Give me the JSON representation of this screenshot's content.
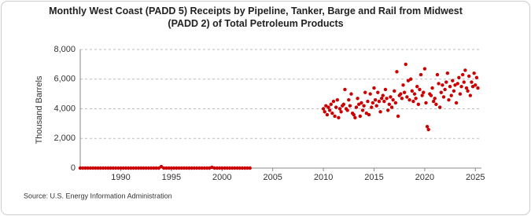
{
  "chart_data": {
    "type": "scatter",
    "title": "Monthly West Coast (PADD 5) Receipts by Pipeline, Tanker, Barge and Rail from Midwest (PADD 2) of Total Petroleum Products",
    "ylabel": "Thousand Barrels",
    "source": "Source: U.S. Energy Information Administration",
    "color": "#cc0000",
    "grid": true,
    "xlim": [
      1986,
      2025.6
    ],
    "xticks": [
      1990,
      1995,
      2000,
      2005,
      2010,
      2015,
      2020,
      2025
    ],
    "ylim": [
      0,
      8000
    ],
    "yticks": [
      {
        "value": 0,
        "label": "0"
      },
      {
        "value": 2000,
        "label": "2,000"
      },
      {
        "value": 4000,
        "label": "4,000"
      },
      {
        "value": 6000,
        "label": "6,000"
      },
      {
        "value": 8000,
        "label": "8,000"
      }
    ],
    "x": [
      1986,
      1986.25,
      1986.5,
      1986.75,
      1987,
      1987.25,
      1987.5,
      1987.75,
      1988,
      1988.25,
      1988.5,
      1988.75,
      1989,
      1989.25,
      1989.5,
      1989.75,
      1990,
      1990.25,
      1990.5,
      1990.75,
      1991,
      1991.25,
      1991.5,
      1991.75,
      1992,
      1992.25,
      1992.5,
      1992.75,
      1993,
      1993.25,
      1993.5,
      1993.75,
      1994,
      1994.25,
      1994.5,
      1994.75,
      1995,
      1995.25,
      1995.5,
      1995.75,
      1996,
      1996.25,
      1996.5,
      1996.75,
      1997,
      1997.25,
      1997.5,
      1997.75,
      1998,
      1998.25,
      1998.5,
      1998.75,
      1999,
      1999.25,
      1999.5,
      1999.75,
      2000,
      2000.25,
      2000.5,
      2000.75,
      2001,
      2001.25,
      2001.5,
      2001.75,
      2002,
      2002.25,
      2002.5,
      2002.75,
      2010,
      2010.125,
      2010.25,
      2010.375,
      2010.5,
      2010.625,
      2010.75,
      2010.875,
      2011,
      2011.125,
      2011.25,
      2011.375,
      2011.5,
      2011.625,
      2011.75,
      2011.875,
      2012,
      2012.125,
      2012.25,
      2012.375,
      2012.5,
      2012.625,
      2012.75,
      2012.875,
      2013,
      2013.125,
      2013.25,
      2013.375,
      2013.5,
      2013.625,
      2013.75,
      2013.875,
      2014,
      2014.125,
      2014.25,
      2014.375,
      2014.5,
      2014.625,
      2014.75,
      2014.875,
      2015,
      2015.125,
      2015.25,
      2015.375,
      2015.5,
      2015.625,
      2015.75,
      2015.875,
      2016,
      2016.125,
      2016.25,
      2016.375,
      2016.5,
      2016.625,
      2016.75,
      2016.875,
      2017,
      2017.125,
      2017.25,
      2017.375,
      2017.5,
      2017.625,
      2017.75,
      2017.875,
      2018,
      2018.125,
      2018.25,
      2018.375,
      2018.5,
      2018.625,
      2018.75,
      2018.875,
      2019,
      2019.125,
      2019.25,
      2019.375,
      2019.5,
      2019.625,
      2019.75,
      2019.875,
      2020,
      2020.125,
      2020.25,
      2020.375,
      2020.5,
      2020.625,
      2020.75,
      2020.875,
      2021,
      2021.125,
      2021.25,
      2021.375,
      2021.5,
      2021.625,
      2021.75,
      2021.875,
      2022,
      2022.125,
      2022.25,
      2022.375,
      2022.5,
      2022.625,
      2022.75,
      2022.875,
      2023,
      2023.125,
      2023.25,
      2023.375,
      2023.5,
      2023.625,
      2023.75,
      2023.875,
      2024,
      2024.125,
      2024.25,
      2024.375,
      2024.5,
      2024.625,
      2024.75,
      2024.875,
      2025,
      2025.125,
      2025.25
    ],
    "values": [
      0,
      0,
      0,
      0,
      0,
      0,
      0,
      0,
      0,
      0,
      0,
      0,
      0,
      0,
      0,
      0,
      0,
      0,
      0,
      0,
      0,
      0,
      0,
      0,
      0,
      0,
      0,
      0,
      0,
      0,
      0,
      0,
      100,
      0,
      0,
      0,
      0,
      0,
      0,
      0,
      0,
      0,
      0,
      0,
      0,
      0,
      0,
      0,
      0,
      0,
      0,
      0,
      50,
      0,
      0,
      0,
      0,
      0,
      0,
      0,
      0,
      0,
      0,
      0,
      0,
      0,
      0,
      0,
      4000,
      3800,
      4200,
      3600,
      4100,
      3900,
      4300,
      3700,
      4500,
      3500,
      4100,
      4600,
      3400,
      4000,
      3800,
      4200,
      4300,
      5300,
      4000,
      3900,
      4600,
      4200,
      5000,
      3700,
      3600,
      3400,
      4100,
      4700,
      4300,
      3500,
      4400,
      3900,
      4200,
      5100,
      3700,
      4500,
      3600,
      5000,
      4100,
      4400,
      5400,
      4600,
      4200,
      5100,
      4500,
      3800,
      4700,
      4900,
      4500,
      5300,
      4700,
      3900,
      4300,
      4800,
      4100,
      4600,
      5200,
      4400,
      6500,
      3500,
      4900,
      5000,
      4700,
      5600,
      5100,
      7000,
      4800,
      5900,
      4600,
      6000,
      5200,
      4500,
      5000,
      4700,
      5500,
      4300,
      5300,
      6300,
      4900,
      5100,
      6700,
      4400,
      2800,
      2600,
      5000,
      4900,
      5400,
      4500,
      4700,
      4300,
      6300,
      5700,
      4100,
      5100,
      5600,
      4800,
      5300,
      5800,
      6400,
      4600,
      5500,
      4900,
      5900,
      5200,
      5600,
      4400,
      5700,
      6100,
      5000,
      5500,
      6300,
      5800,
      6600,
      5400,
      5200,
      6200,
      4900,
      5800,
      5500,
      6400,
      5600,
      6100,
      5400
    ]
  }
}
